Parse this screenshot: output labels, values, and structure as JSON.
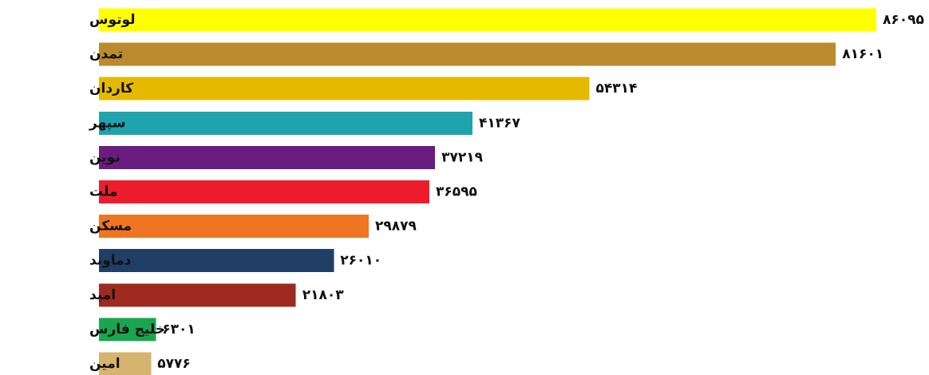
{
  "chart_data": {
    "type": "bar",
    "orientation": "horizontal",
    "categories": [
      "لوتوس",
      "تمدن",
      "کاردان",
      "سپهر",
      "نوین",
      "ملت",
      "مسکن",
      "دماوند",
      "امید",
      "خلیج فارس",
      "امین"
    ],
    "values": [
      86095,
      81601,
      54314,
      41367,
      37219,
      36595,
      29879,
      26010,
      21803,
      6301,
      5776
    ],
    "value_labels": [
      "۸۶۰۹۵",
      "۸۱۶۰۱",
      "۵۴۳۱۴",
      "۴۱۳۶۷",
      "۳۷۲۱۹",
      "۳۶۵۹۵",
      "۲۹۸۷۹",
      "۲۶۰۱۰",
      "۲۱۸۰۳",
      "۶۳۰۱",
      "۵۷۷۶"
    ],
    "colors": [
      "#FFFF00",
      "#BC8A2E",
      "#E5B900",
      "#1FA3AC",
      "#6B1C80",
      "#EE1D2E",
      "#F07522",
      "#213E66",
      "#9E2A20",
      "#19A64E",
      "#D6B36E"
    ],
    "title": "",
    "xlabel": "",
    "ylabel": "",
    "grid": false,
    "legend": "none"
  }
}
